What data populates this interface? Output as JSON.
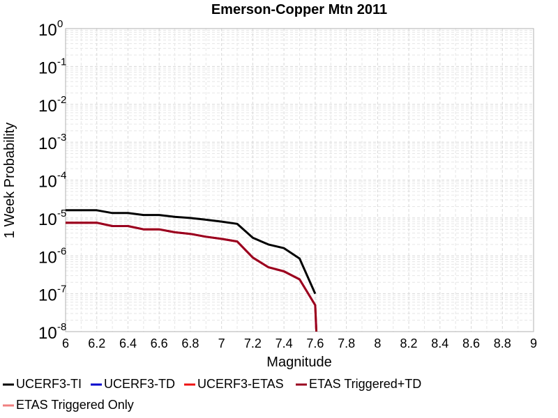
{
  "chart_data": {
    "type": "line",
    "title": "Emerson-Copper Mtn 2011",
    "xlabel": "Magnitude",
    "ylabel": "1 Week Probability",
    "xlim": [
      6,
      9
    ],
    "ylim": [
      1e-08,
      1
    ],
    "yscale": "log",
    "grid": true,
    "legend_position": "bottom",
    "x_ticks": [
      "6",
      "6.2",
      "6.4",
      "6.6",
      "6.8",
      "7",
      "7.2",
      "7.4",
      "7.6",
      "7.8",
      "8",
      "8.2",
      "8.4",
      "8.6",
      "8.8",
      "9"
    ],
    "y_ticks": [
      {
        "base": "10",
        "exp": "0"
      },
      {
        "base": "10",
        "exp": "-1"
      },
      {
        "base": "10",
        "exp": "-2"
      },
      {
        "base": "10",
        "exp": "-3"
      },
      {
        "base": "10",
        "exp": "-4"
      },
      {
        "base": "10",
        "exp": "-5"
      },
      {
        "base": "10",
        "exp": "-6"
      },
      {
        "base": "10",
        "exp": "-7"
      },
      {
        "base": "10",
        "exp": "-8"
      }
    ],
    "series": [
      {
        "name": "UCERF3-TI",
        "color": "#000000",
        "x": [
          6.0,
          6.1,
          6.2,
          6.3,
          6.4,
          6.5,
          6.6,
          6.7,
          6.8,
          6.9,
          7.0,
          7.1,
          7.2,
          7.3,
          7.4,
          7.5,
          7.6
        ],
        "y": [
          1.6e-05,
          1.6e-05,
          1.6e-05,
          1.35e-05,
          1.35e-05,
          1.2e-05,
          1.2e-05,
          1.07e-05,
          1e-05,
          9e-06,
          8e-06,
          7e-06,
          3e-06,
          2e-06,
          1.6e-06,
          8.5e-07,
          1e-07
        ]
      },
      {
        "name": "UCERF3-TD",
        "color": "#0000cc",
        "x": [],
        "y": []
      },
      {
        "name": "UCERF3-ETAS",
        "color": "#ee1111",
        "x": [
          6.0,
          6.1,
          6.2,
          6.3,
          6.4,
          6.5,
          6.6,
          6.7,
          6.8,
          6.9,
          7.0,
          7.1,
          7.2,
          7.3,
          7.4,
          7.5,
          7.6,
          7.61
        ],
        "y": [
          7.5e-06,
          7.5e-06,
          7.5e-06,
          6.1e-06,
          6.1e-06,
          5e-06,
          5e-06,
          4.2e-06,
          3.8e-06,
          3.2e-06,
          2.8e-06,
          2.4e-06,
          9e-07,
          5e-07,
          3.9e-07,
          2.4e-07,
          5e-08,
          6e-09
        ]
      },
      {
        "name": "ETAS Triggered+TD",
        "color": "#99001f",
        "x": [
          6.0,
          6.1,
          6.2,
          6.3,
          6.4,
          6.5,
          6.6,
          6.7,
          6.8,
          6.9,
          7.0,
          7.1,
          7.2,
          7.3,
          7.4,
          7.5,
          7.6,
          7.61
        ],
        "y": [
          7.5e-06,
          7.5e-06,
          7.5e-06,
          6.1e-06,
          6.1e-06,
          5e-06,
          5e-06,
          4.2e-06,
          3.8e-06,
          3.2e-06,
          2.8e-06,
          2.4e-06,
          9e-07,
          5e-07,
          3.9e-07,
          2.4e-07,
          5e-08,
          6e-09
        ]
      },
      {
        "name": "ETAS Triggered Only",
        "color": "#f08080",
        "x": [],
        "y": []
      }
    ]
  }
}
